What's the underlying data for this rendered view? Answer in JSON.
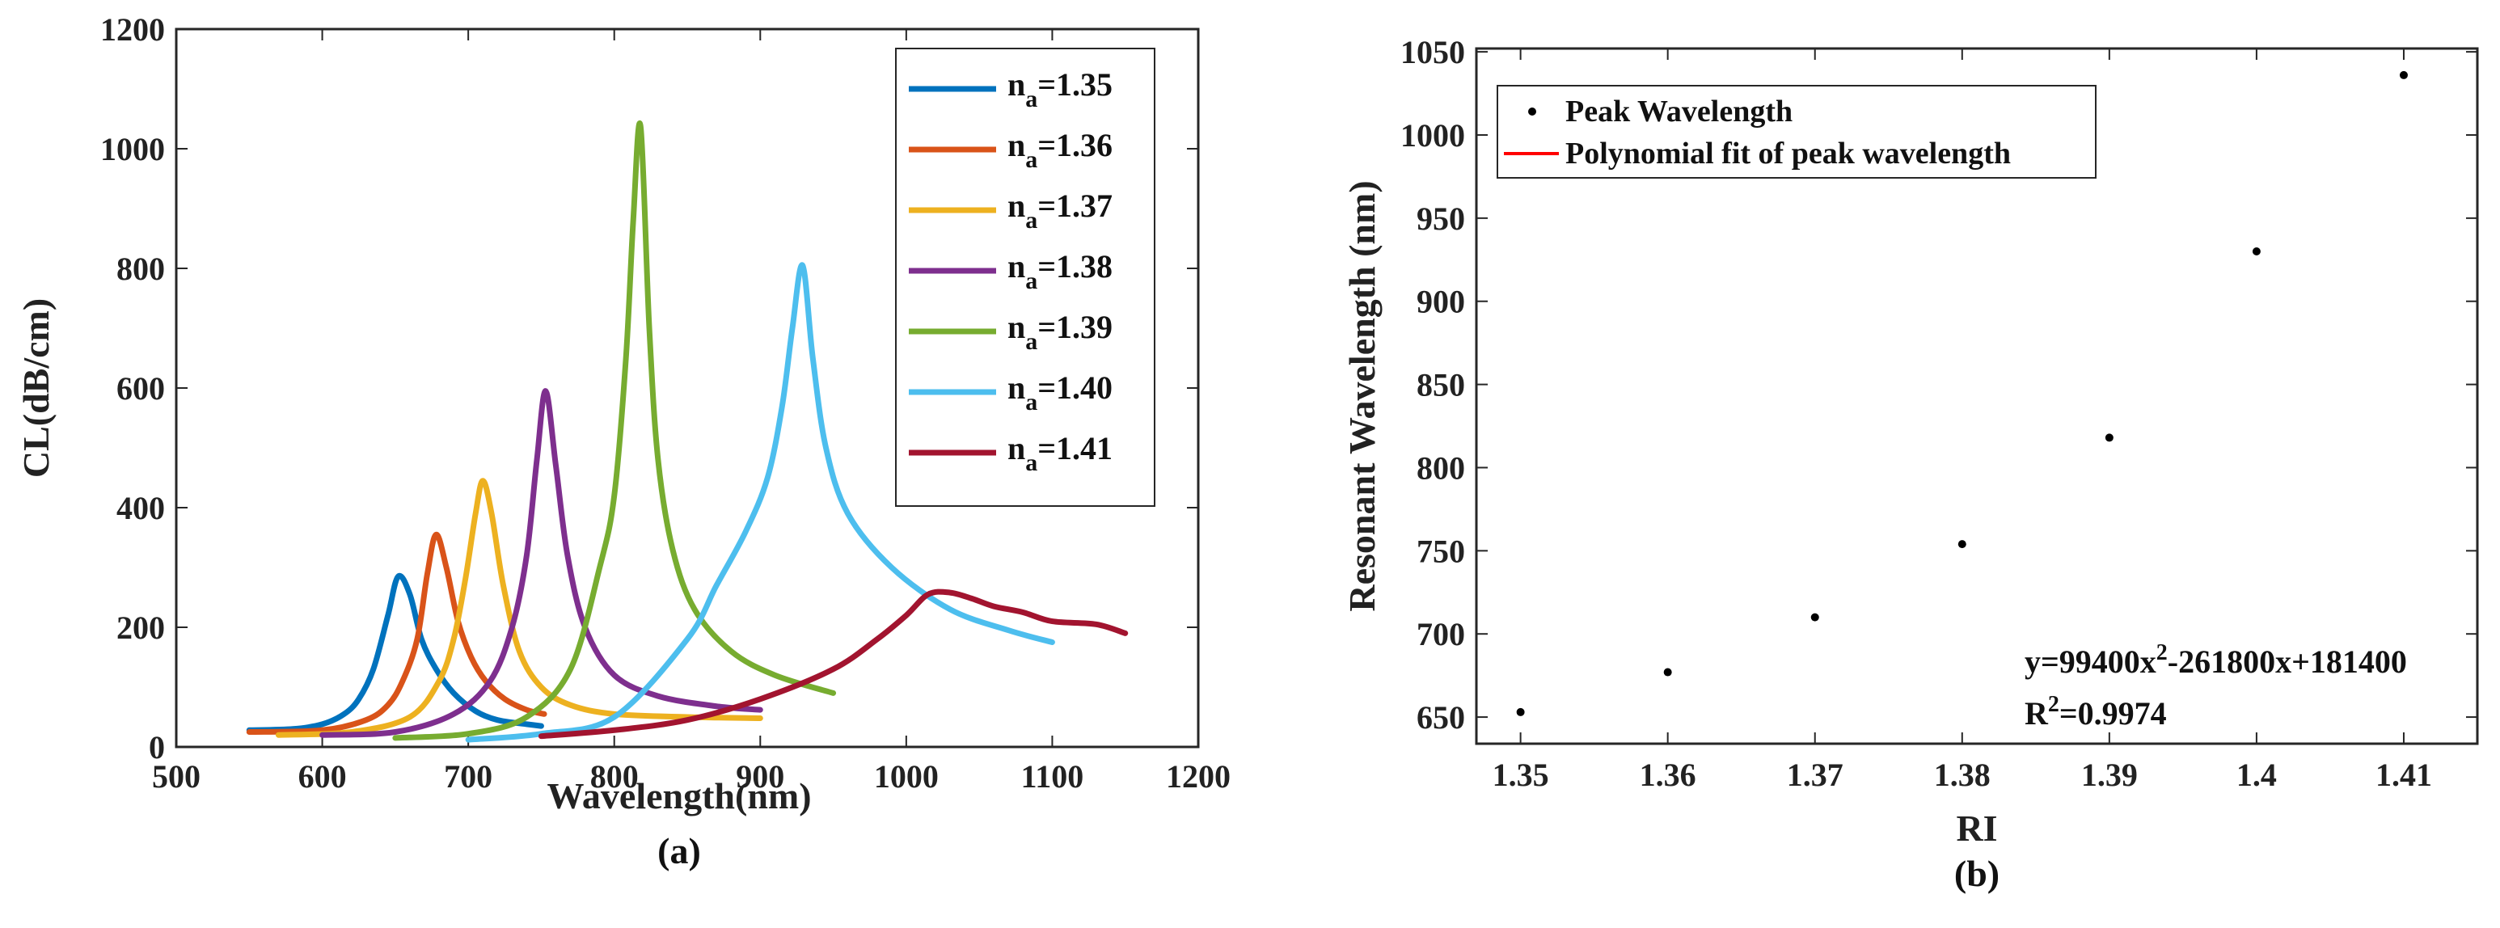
{
  "chart_data": [
    {
      "type": "line",
      "panel": "(a)",
      "xlabel": "Wavelength(nm)",
      "ylabel": "CL(dB/cm)",
      "xlim": [
        500,
        1200
      ],
      "ylim": [
        0,
        1200
      ],
      "xticks": [
        500,
        600,
        700,
        800,
        900,
        1000,
        1100,
        1200
      ],
      "yticks": [
        0,
        200,
        400,
        600,
        800,
        1000,
        1200
      ],
      "legend_position": "top-right",
      "series": [
        {
          "name": "n_a=1.35",
          "base": "n",
          "sub": "a",
          "rest": "=1.35",
          "color": "#0072bd",
          "x": [
            550,
            580,
            600,
            615,
            625,
            635,
            645,
            652,
            660,
            668,
            678,
            690,
            705,
            720,
            740,
            750
          ],
          "y": [
            28,
            30,
            38,
            55,
            80,
            130,
            220,
            285,
            255,
            180,
            130,
            90,
            60,
            45,
            38,
            35
          ]
        },
        {
          "name": "n_a=1.36",
          "base": "n",
          "sub": "a",
          "rest": "=1.36",
          "color": "#d95319",
          "x": [
            550,
            600,
            630,
            645,
            655,
            665,
            672,
            678,
            685,
            693,
            702,
            712,
            725,
            740,
            752
          ],
          "y": [
            25,
            28,
            45,
            70,
            110,
            180,
            290,
            355,
            300,
            210,
            150,
            110,
            80,
            62,
            55
          ]
        },
        {
          "name": "n_a=1.37",
          "base": "n",
          "sub": "a",
          "rest": "=1.37",
          "color": "#edb120",
          "x": [
            570,
            620,
            660,
            680,
            690,
            698,
            705,
            710,
            716,
            724,
            735,
            750,
            770,
            800,
            850,
            900
          ],
          "y": [
            20,
            25,
            50,
            110,
            180,
            280,
            390,
            445,
            390,
            270,
            160,
            100,
            70,
            55,
            50,
            48
          ]
        },
        {
          "name": "n_a=1.38",
          "base": "n",
          "sub": "a",
          "rest": "=1.38",
          "color": "#7e2f8e",
          "x": [
            600,
            650,
            690,
            715,
            730,
            740,
            747,
            753,
            760,
            768,
            780,
            800,
            830,
            870,
            900
          ],
          "y": [
            20,
            25,
            55,
            110,
            200,
            320,
            480,
            595,
            470,
            320,
            200,
            120,
            85,
            68,
            62
          ]
        },
        {
          "name": "n_a=1.39",
          "base": "n",
          "sub": "a",
          "rest": "=1.39",
          "color": "#77ac30",
          "x": [
            650,
            700,
            740,
            770,
            790,
            800,
            808,
            813,
            818,
            824,
            830,
            840,
            855,
            880,
            910,
            950
          ],
          "y": [
            15,
            22,
            50,
            130,
            300,
            420,
            650,
            880,
            1038,
            700,
            480,
            330,
            230,
            160,
            120,
            90
          ]
        },
        {
          "name": "n_a=1.40",
          "base": "n",
          "sub": "a",
          "rest": "=1.40",
          "color": "#4dbeee",
          "x": [
            700,
            750,
            800,
            850,
            870,
            890,
            905,
            915,
            922,
            929,
            936,
            945,
            960,
            990,
            1030,
            1070,
            1100
          ],
          "y": [
            12,
            22,
            50,
            180,
            270,
            360,
            450,
            570,
            700,
            805,
            650,
            500,
            390,
            300,
            230,
            195,
            175
          ]
        },
        {
          "name": "n_a=1.41",
          "base": "n",
          "sub": "a",
          "rest": "=1.41",
          "color": "#a2142f",
          "x": [
            750,
            800,
            850,
            900,
            950,
            980,
            1000,
            1015,
            1030,
            1045,
            1060,
            1080,
            1100,
            1130,
            1150
          ],
          "y": [
            18,
            28,
            45,
            80,
            130,
            180,
            220,
            255,
            258,
            248,
            235,
            225,
            210,
            205,
            190
          ]
        }
      ]
    },
    {
      "type": "scatter",
      "panel": "(b)",
      "xlabel": "RI",
      "ylabel": "Resonant Wavelength (nm)",
      "xlim": [
        1.347,
        1.415
      ],
      "ylim": [
        634,
        1052
      ],
      "xticks": [
        1.35,
        1.36,
        1.37,
        1.38,
        1.39,
        1.4,
        1.41
      ],
      "xtick_labels": [
        "1.35",
        "1.36",
        "1.37",
        "1.38",
        "1.39",
        "1.4",
        "1.41"
      ],
      "yticks": [
        650,
        700,
        750,
        800,
        850,
        900,
        950,
        1000,
        1050
      ],
      "legend_position": "top-left",
      "points": {
        "name": "Peak Wavelength",
        "color": "#000000",
        "x": [
          1.35,
          1.36,
          1.37,
          1.38,
          1.39,
          1.4,
          1.41
        ],
        "y": [
          653,
          677,
          710,
          754,
          818,
          930,
          1036
        ]
      },
      "fit": {
        "name": "Polynomial fit of peak wavelength",
        "color": "#ff0000",
        "coefficients": [
          99400,
          -261800,
          181400
        ]
      },
      "annotation": {
        "equation_a": "y=99400x",
        "equation_exp": "2",
        "equation_b": "-261800x+181400",
        "r2_base": "R",
        "r2_exp": "2",
        "r2_value": "=0.9974"
      }
    }
  ]
}
